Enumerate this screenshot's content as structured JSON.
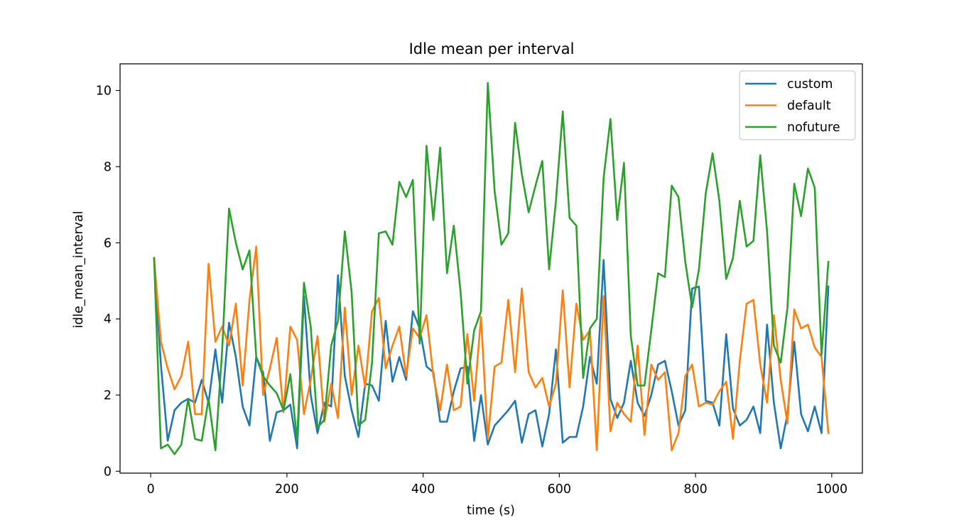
{
  "chart_data": {
    "type": "line",
    "title": "Idle mean per interval",
    "xlabel": "time (s)",
    "ylabel": "idle_mean_interval",
    "xlim": [
      -45,
      1045
    ],
    "ylim": [
      -0.05,
      10.7
    ],
    "xticks": [
      0,
      200,
      400,
      600,
      800,
      1000
    ],
    "yticks": [
      0,
      2,
      4,
      6,
      8,
      10
    ],
    "grid": false,
    "legend_position": "upper-right",
    "x": [
      5,
      15,
      25,
      35,
      45,
      55,
      65,
      75,
      85,
      95,
      105,
      115,
      125,
      135,
      145,
      155,
      165,
      175,
      185,
      195,
      205,
      215,
      225,
      235,
      245,
      255,
      265,
      275,
      285,
      295,
      305,
      315,
      325,
      335,
      345,
      355,
      365,
      375,
      385,
      395,
      405,
      415,
      425,
      435,
      445,
      455,
      465,
      475,
      485,
      495,
      505,
      515,
      525,
      535,
      545,
      555,
      565,
      575,
      585,
      595,
      605,
      615,
      625,
      635,
      645,
      655,
      665,
      675,
      685,
      695,
      705,
      715,
      725,
      735,
      745,
      755,
      765,
      775,
      785,
      795,
      805,
      815,
      825,
      835,
      845,
      855,
      865,
      875,
      885,
      895,
      905,
      915,
      925,
      935,
      945,
      955,
      965,
      975,
      985,
      995
    ],
    "series": [
      {
        "name": "custom",
        "color": "#1f77b4",
        "values": [
          5.6,
          2.8,
          0.8,
          1.6,
          1.8,
          1.9,
          1.8,
          2.4,
          1.8,
          3.2,
          1.8,
          3.9,
          3.0,
          1.7,
          1.2,
          3.0,
          2.6,
          0.8,
          1.55,
          1.6,
          1.75,
          0.6,
          4.6,
          2.0,
          1.0,
          1.8,
          1.7,
          5.15,
          2.5,
          1.6,
          0.9,
          2.3,
          2.25,
          1.85,
          3.95,
          2.35,
          3.0,
          2.4,
          4.2,
          3.75,
          2.75,
          2.6,
          1.3,
          1.3,
          2.1,
          2.7,
          2.75,
          0.8,
          2.0,
          0.7,
          1.2,
          1.4,
          1.6,
          1.85,
          0.75,
          1.5,
          1.6,
          0.65,
          1.5,
          3.2,
          0.75,
          0.9,
          0.9,
          1.7,
          3.0,
          2.3,
          5.55,
          1.9,
          1.4,
          1.8,
          2.9,
          1.8,
          1.45,
          2.0,
          2.8,
          2.9,
          2.1,
          1.2,
          1.6,
          4.8,
          4.85,
          1.85,
          1.8,
          1.2,
          3.6,
          1.65,
          1.2,
          1.35,
          1.7,
          1.0,
          3.85,
          1.8,
          0.6,
          1.5,
          3.4,
          1.5,
          1.05,
          1.7,
          1.0,
          4.85
        ]
      },
      {
        "name": "default",
        "color": "#ff7f0e",
        "values": [
          5.6,
          3.4,
          2.7,
          2.15,
          2.5,
          3.4,
          1.5,
          1.5,
          5.45,
          3.4,
          3.8,
          3.3,
          4.4,
          2.25,
          4.5,
          5.9,
          2.0,
          2.7,
          3.5,
          1.55,
          3.8,
          3.45,
          1.5,
          2.4,
          3.55,
          1.3,
          2.3,
          1.4,
          4.3,
          2.0,
          3.3,
          2.2,
          4.2,
          4.55,
          2.7,
          3.3,
          3.8,
          2.5,
          3.75,
          3.5,
          4.1,
          2.5,
          1.6,
          2.8,
          1.6,
          1.7,
          3.6,
          1.85,
          4.05,
          0.85,
          2.75,
          2.85,
          4.5,
          2.6,
          4.8,
          2.6,
          2.2,
          2.45,
          1.7,
          2.3,
          4.75,
          2.2,
          4.4,
          3.45,
          3.7,
          0.55,
          4.6,
          1.05,
          1.8,
          1.5,
          1.3,
          3.3,
          0.95,
          2.8,
          2.4,
          2.6,
          0.55,
          1.0,
          2.5,
          2.8,
          1.7,
          1.8,
          1.75,
          2.1,
          2.35,
          0.85,
          2.9,
          4.4,
          4.5,
          2.8,
          1.8,
          4.1,
          2.4,
          1.25,
          4.25,
          3.75,
          3.85,
          3.25,
          3.0,
          1.0
        ]
      },
      {
        "name": "nofuture",
        "color": "#2ca02c",
        "values": [
          5.6,
          0.6,
          0.7,
          0.45,
          0.7,
          1.9,
          0.85,
          0.8,
          1.9,
          0.55,
          3.2,
          6.9,
          6.0,
          5.3,
          5.8,
          3.0,
          2.5,
          2.25,
          2.05,
          1.6,
          2.55,
          0.8,
          4.95,
          3.8,
          1.15,
          1.35,
          3.3,
          3.95,
          6.3,
          4.7,
          1.2,
          1.35,
          2.85,
          6.25,
          6.3,
          5.95,
          7.6,
          7.2,
          7.65,
          3.35,
          8.55,
          6.6,
          8.5,
          5.2,
          6.45,
          4.7,
          2.3,
          3.7,
          4.2,
          10.2,
          7.35,
          5.95,
          6.25,
          9.15,
          7.8,
          6.8,
          7.5,
          8.15,
          5.3,
          7.1,
          9.45,
          6.65,
          6.45,
          2.45,
          3.75,
          4.0,
          7.7,
          9.25,
          6.6,
          8.1,
          3.55,
          2.25,
          2.25,
          3.7,
          5.2,
          5.1,
          7.5,
          7.2,
          5.5,
          4.3,
          5.3,
          7.3,
          8.35,
          7.1,
          5.05,
          5.6,
          7.1,
          5.9,
          6.05,
          8.3,
          6.3,
          3.3,
          2.85,
          4.3,
          7.55,
          6.7,
          7.95,
          7.45,
          3.05,
          5.5
        ]
      }
    ]
  }
}
